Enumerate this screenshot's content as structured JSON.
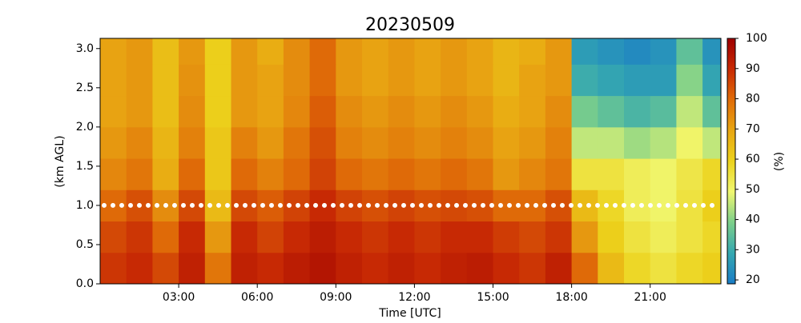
{
  "chart_data": {
    "type": "heatmap",
    "title": "20230509",
    "xlabel": "Time [UTC]",
    "ylabel": "(km AGL)",
    "colorbar_label": "(%)",
    "xbins": [
      0,
      1,
      2,
      3,
      4,
      5,
      6,
      7,
      8,
      9,
      10,
      11,
      12,
      13,
      14,
      15,
      16,
      17,
      18,
      19,
      20,
      21,
      22,
      23,
      23.7
    ],
    "ybins": [
      0,
      0.4,
      0.8,
      1.2,
      1.6,
      2.0,
      2.4,
      2.8,
      3.13
    ],
    "z": [
      [
        88,
        90,
        85,
        92,
        78,
        92,
        90,
        93,
        95,
        92,
        90,
        92,
        90,
        92,
        93,
        90,
        88,
        92,
        80,
        65,
        58,
        55,
        58,
        60
      ],
      [
        85,
        88,
        80,
        90,
        72,
        90,
        86,
        90,
        93,
        90,
        88,
        90,
        88,
        90,
        90,
        87,
        85,
        88,
        72,
        60,
        55,
        52,
        55,
        58
      ],
      [
        80,
        84,
        74,
        85,
        65,
        85,
        82,
        86,
        90,
        86,
        84,
        86,
        84,
        85,
        84,
        80,
        80,
        84,
        65,
        58,
        52,
        50,
        55,
        60
      ],
      [
        75,
        78,
        68,
        80,
        62,
        80,
        76,
        80,
        86,
        80,
        78,
        80,
        78,
        80,
        78,
        72,
        75,
        78,
        55,
        55,
        52,
        50,
        54,
        58
      ],
      [
        72,
        75,
        66,
        76,
        62,
        76,
        72,
        78,
        84,
        76,
        74,
        76,
        74,
        76,
        74,
        70,
        72,
        76,
        45,
        45,
        42,
        44,
        50,
        45
      ],
      [
        70,
        72,
        64,
        74,
        60,
        72,
        70,
        75,
        82,
        74,
        72,
        74,
        72,
        74,
        72,
        68,
        70,
        74,
        38,
        35,
        32,
        34,
        45,
        35
      ],
      [
        70,
        72,
        64,
        73,
        60,
        72,
        70,
        74,
        80,
        72,
        70,
        72,
        70,
        72,
        70,
        66,
        70,
        72,
        30,
        28,
        26,
        26,
        40,
        28
      ],
      [
        70,
        72,
        64,
        72,
        60,
        72,
        68,
        74,
        80,
        72,
        70,
        72,
        70,
        72,
        70,
        66,
        68,
        72,
        26,
        24,
        22,
        24,
        35,
        24
      ]
    ],
    "xlim": [
      0,
      23.7
    ],
    "ylim": [
      0,
      3.13
    ],
    "xticks": [
      {
        "value": 3,
        "label": "03:00"
      },
      {
        "value": 6,
        "label": "06:00"
      },
      {
        "value": 9,
        "label": "09:00"
      },
      {
        "value": 12,
        "label": "12:00"
      },
      {
        "value": 15,
        "label": "15:00"
      },
      {
        "value": 18,
        "label": "18:00"
      },
      {
        "value": 21,
        "label": "21:00"
      }
    ],
    "yticks": [
      {
        "value": 0,
        "label": "0.0"
      },
      {
        "value": 0.5,
        "label": "0.5"
      },
      {
        "value": 1,
        "label": "1.0"
      },
      {
        "value": 1.5,
        "label": "1.5"
      },
      {
        "value": 2,
        "label": "2.0"
      },
      {
        "value": 2.5,
        "label": "2.5"
      },
      {
        "value": 3,
        "label": "3.0"
      }
    ],
    "clim": [
      18.7,
      100
    ],
    "cticks": [
      20,
      30,
      40,
      50,
      60,
      70,
      80,
      90,
      100
    ],
    "colormap": [
      "#1a7cc6",
      "#35a8b0",
      "#7ccf8a",
      "#f0f770",
      "#ecd21c",
      "#e8a612",
      "#e06c08",
      "#c82a04",
      "#9e0000"
    ],
    "reference_line": {
      "y": 1.0,
      "color": "#ffffff"
    }
  }
}
